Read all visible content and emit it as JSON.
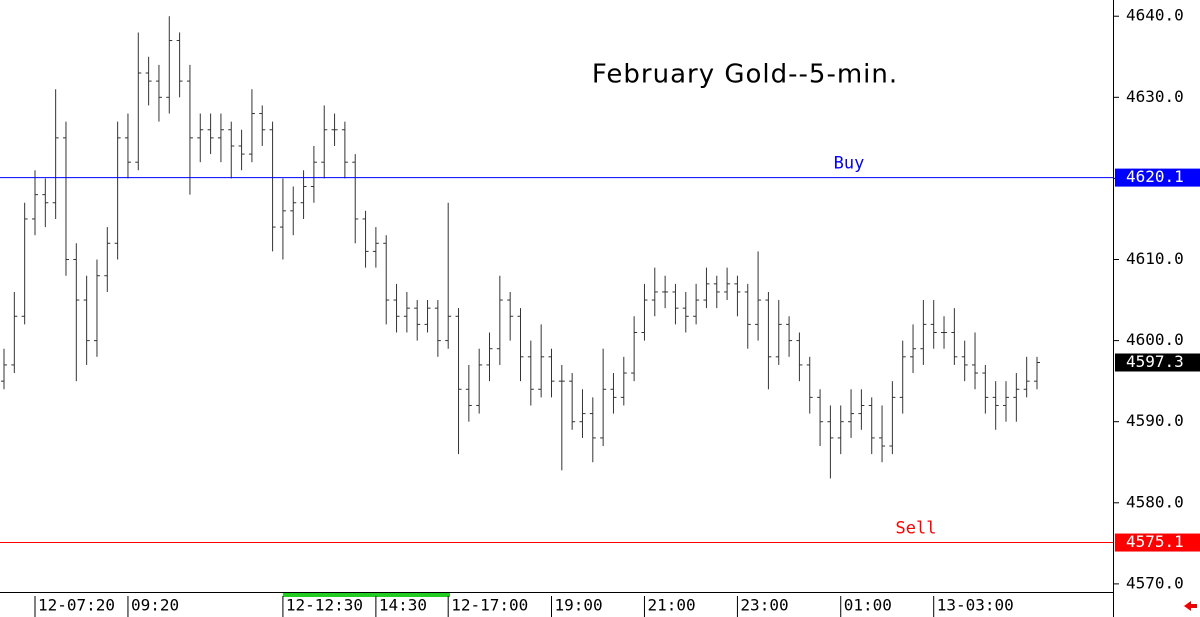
{
  "chart_data": {
    "type": "ohlc",
    "title": "February Gold--5-min.",
    "categories": [
      null,
      null,
      null,
      "12-07:20",
      null,
      null,
      null,
      null,
      null,
      null,
      null,
      null,
      "09:20",
      null,
      null,
      null,
      null,
      null,
      null,
      null,
      null,
      null,
      null,
      null,
      null,
      null,
      null,
      "12-12:30",
      null,
      null,
      null,
      null,
      null,
      null,
      null,
      null,
      "14:30",
      null,
      null,
      null,
      null,
      null,
      null,
      "12-17:00",
      null,
      null,
      null,
      null,
      null,
      null,
      null,
      null,
      null,
      "19:00",
      null,
      null,
      null,
      null,
      null,
      null,
      null,
      null,
      "21:00",
      null,
      null,
      null,
      null,
      null,
      null,
      null,
      null,
      "23:00",
      null,
      null,
      null,
      null,
      null,
      null,
      null,
      null,
      null,
      "01:00",
      null,
      null,
      null,
      null,
      null,
      null,
      null,
      null,
      "13-03:00",
      null,
      null,
      null,
      null,
      null,
      null,
      null,
      null,
      null,
      null
    ],
    "series": [
      {
        "color": "#333333",
        "open": [
          4595,
          4597,
          4603,
          4615,
          4618,
          4617,
          4625,
          4610,
          4605,
          4600,
          4608,
          4612,
          4625,
          4622,
          4633,
          4632,
          4630,
          4637,
          4632,
          4625,
          4626,
          4625,
          4626,
          4624,
          4623,
          4628,
          4626,
          4614,
          4616,
          4617,
          4619,
          4622,
          4626,
          4626,
          4622,
          4615,
          4611,
          4612,
          4605,
          4603,
          4604,
          4602,
          4604,
          4600,
          4603,
          4594,
          4592,
          4597,
          4599,
          4605,
          4603,
          4598,
          4594,
          4598,
          4595,
          4595,
          4590,
          4591,
          4588,
          4594,
          4593,
          4596,
          4601,
          4605,
          4606,
          4606,
          4604,
          4603,
          4605,
          4607,
          4606,
          4607,
          4606,
          4602,
          4605,
          4598,
          4602,
          4600,
          4597,
          4593,
          4590,
          4588,
          4590,
          4591,
          4592,
          4588,
          4587,
          4593,
          4598,
          4599,
          4602,
          4601,
          4601,
          4598,
          4597,
          4596,
          4593,
          4592,
          4593,
          4594,
          4595
        ],
        "high": [
          4599,
          4606,
          4617,
          4621,
          4620,
          4631,
          4627,
          4612,
          4608,
          4610,
          4614,
          4627,
          4628,
          4638,
          4635,
          4634,
          4640,
          4638,
          4634,
          4628,
          4628,
          4628,
          4627,
          4626,
          4631,
          4629,
          4627,
          4620,
          4619,
          4621,
          4624,
          4629,
          4628,
          4627,
          4623,
          4616,
          4614,
          4613,
          4607,
          4606,
          4605,
          4605,
          4605,
          4617,
          4604,
          4597,
          4599,
          4601,
          4608,
          4606,
          4604,
          4600,
          4602,
          4599,
          4597,
          4596,
          4594,
          4593,
          4599,
          4596,
          4598,
          4603,
          4607,
          4609,
          4608,
          4607,
          4606,
          4607,
          4609,
          4608,
          4609,
          4608,
          4607,
          4611,
          4606,
          4605,
          4603,
          4601,
          4598,
          4594,
          4592,
          4592,
          4594,
          4594,
          4593,
          4592,
          4595,
          4600,
          4602,
          4605,
          4605,
          4603,
          4604,
          4600,
          4601,
          4597,
          4595,
          4595,
          4596,
          4598,
          4598
        ],
        "low": [
          4594,
          4596,
          4602,
          4613,
          4614,
          4615,
          4608,
          4595,
          4597,
          4598,
          4606,
          4610,
          4620,
          4621,
          4629,
          4627,
          4628,
          4630,
          4618,
          4622,
          4623,
          4622,
          4620,
          4621,
          4622,
          4624,
          4611,
          4610,
          4613,
          4615,
          4617,
          4620,
          4624,
          4620,
          4612,
          4609,
          4609,
          4602,
          4601,
          4601,
          4600,
          4601,
          4598,
          4599,
          4586,
          4590,
          4591,
          4595,
          4597,
          4600,
          4595,
          4592,
          4593,
          4593,
          4584,
          4589,
          4588,
          4585,
          4587,
          4591,
          4592,
          4595,
          4600,
          4603,
          4604,
          4602,
          4601,
          4602,
          4604,
          4604,
          4605,
          4603,
          4599,
          4600,
          4594,
          4597,
          4598,
          4595,
          4591,
          4587,
          4583,
          4586,
          4588,
          4589,
          4586,
          4585,
          4586,
          4591,
          4596,
          4597,
          4599,
          4599,
          4597,
          4595,
          4594,
          4591,
          4589,
          4590,
          4590,
          4593,
          4594
        ],
        "close": [
          4597,
          4603,
          4615,
          4618,
          4617,
          4625,
          4610,
          4605,
          4600,
          4608,
          4612,
          4625,
          4622,
          4633,
          4632,
          4630,
          4637,
          4632,
          4625,
          4626,
          4625,
          4626,
          4624,
          4623,
          4628,
          4626,
          4614,
          4616,
          4617,
          4619,
          4622,
          4626,
          4626,
          4622,
          4615,
          4611,
          4612,
          4605,
          4603,
          4604,
          4602,
          4604,
          4600,
          4603,
          4594,
          4592,
          4597,
          4599,
          4605,
          4603,
          4598,
          4594,
          4598,
          4595,
          4595,
          4590,
          4591,
          4588,
          4594,
          4593,
          4596,
          4601,
          4605,
          4606,
          4606,
          4604,
          4603,
          4605,
          4607,
          4606,
          4607,
          4606,
          4602,
          4605,
          4598,
          4602,
          4600,
          4597,
          4593,
          4590,
          4588,
          4590,
          4591,
          4592,
          4588,
          4587,
          4593,
          4598,
          4599,
          4602,
          4601,
          4601,
          4598,
          4597,
          4596,
          4593,
          4592,
          4593,
          4594,
          4595,
          4597.3
        ]
      }
    ],
    "levels": [
      {
        "label": "Buy",
        "value": 4620.1,
        "color": "#0000ff"
      },
      {
        "label": "Sell",
        "value": 4575.1,
        "color": "#ff0000"
      }
    ],
    "last": {
      "value": 4597.3,
      "color": "#000000"
    },
    "ylim": [
      4569,
      4642
    ],
    "yticks": [
      {
        "value": 4570,
        "label": "4570.0"
      },
      {
        "value": 4580,
        "label": "4580.0"
      },
      {
        "value": 4590,
        "label": "4590.0"
      },
      {
        "value": 4600,
        "label": "4600.0"
      },
      {
        "value": 4610,
        "label": "4610.0"
      },
      {
        "value": 4620,
        "label": "4620.0"
      },
      {
        "value": 4630,
        "label": "4630.0"
      },
      {
        "value": 4640,
        "label": "4640.0"
      }
    ]
  }
}
